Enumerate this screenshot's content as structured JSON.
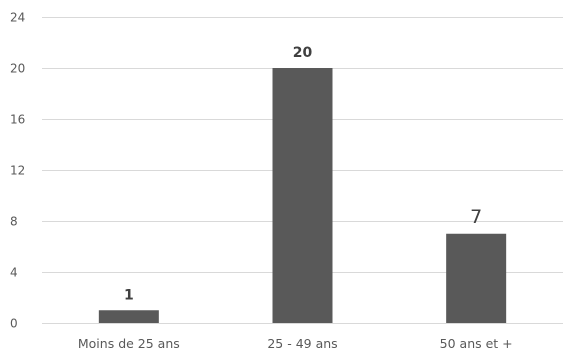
{
  "chart_data": {
    "type": "bar",
    "title": "",
    "xlabel": "",
    "ylabel": "",
    "categories": [
      "Moins de 25 ans",
      "25 - 49 ans",
      "50 ans et +"
    ],
    "values": [
      1,
      20,
      7
    ],
    "data_labels": [
      "1",
      "20",
      "7"
    ],
    "ylim": [
      0,
      24
    ],
    "yticks": [
      0,
      4,
      8,
      12,
      16,
      20,
      24
    ],
    "ytick_labels": [
      "0",
      "4",
      "8",
      "12",
      "16",
      "20",
      "24"
    ],
    "grid": true,
    "legend": "none",
    "colors": {
      "bar": "#595959",
      "grid": "#d9d9d9",
      "text": "#595959"
    }
  }
}
